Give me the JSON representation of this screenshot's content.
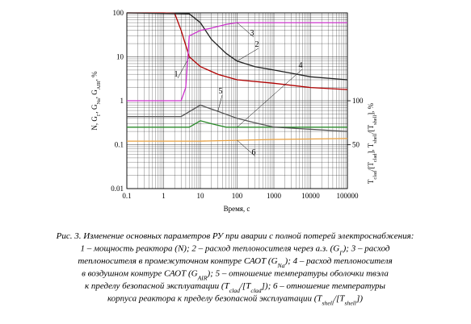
{
  "chart_data": {
    "type": "line",
    "xlabel": "Время, с",
    "ylabel": [
      "N, G",
      "Г",
      ", G",
      "Na",
      ", G",
      "AIR",
      ", %"
    ],
    "y2label": [
      "T",
      "clad",
      "/[T",
      "clad",
      "], T",
      "shell",
      "/[T",
      "shell",
      "], %"
    ],
    "xscale": "log",
    "yscale": "log",
    "xlim": [
      0.1,
      100000
    ],
    "ylim": [
      0.01,
      100
    ],
    "y2lim": [
      0,
      200
    ],
    "xticks": [
      0.1,
      1,
      10,
      100,
      1000,
      10000,
      100000
    ],
    "yticks": [
      0.01,
      0.1,
      1,
      10,
      100
    ],
    "y2ticks": [
      50,
      100
    ],
    "grid": true,
    "minor_grid": true,
    "series": [
      {
        "name": "1",
        "color": "#b00000",
        "x": [
          0.1,
          1,
          2,
          3,
          5,
          10,
          30,
          100,
          1000,
          10000,
          100000
        ],
        "values": [
          100,
          100,
          98,
          40,
          10,
          6,
          4,
          3,
          2.5,
          2,
          1.8
        ]
      },
      {
        "name": "2",
        "color": "#222222",
        "x": [
          0.1,
          5,
          10,
          20,
          50,
          100,
          300,
          1000,
          10000,
          100000
        ],
        "values": [
          100,
          95,
          60,
          25,
          12,
          8,
          6,
          5,
          3.5,
          3
        ]
      },
      {
        "name": "3",
        "color": "#cc33cc",
        "x": [
          0.1,
          3,
          4,
          5,
          10,
          20,
          50,
          100,
          100000
        ],
        "values": [
          1,
          1,
          2,
          30,
          40,
          45,
          55,
          60,
          60
        ]
      },
      {
        "name": "4",
        "color": "#2a8a2a",
        "x": [
          0.1,
          5,
          10,
          20,
          50,
          100,
          1000,
          100000
        ],
        "values": [
          0.25,
          0.25,
          0.35,
          0.3,
          0.25,
          0.25,
          0.25,
          0.25
        ]
      },
      {
        "name": "5",
        "color": "#555555",
        "axis": "y2",
        "x": [
          0.1,
          3,
          10,
          30,
          100,
          300,
          1000,
          100000
        ],
        "values": [
          82,
          82,
          95,
          88,
          80,
          75,
          70,
          65
        ]
      },
      {
        "name": "6",
        "color": "#e8a040",
        "axis": "y2",
        "x": [
          0.1,
          10,
          100,
          1000,
          100000
        ],
        "values": [
          54,
          54,
          55,
          56,
          57
        ]
      }
    ],
    "caption": [
      [
        "Рис. 3. Изменение основных параметров РУ при аварии с полной потерей электроснабжения:"
      ],
      [
        "1 – мощность реактора (N); 2 – расход теплоносителя через а.з. (G",
        "Г",
        "); 3 – расход"
      ],
      [
        "теплоносителя в промежуточном контуре САОТ (G",
        "Na",
        "); 4 – расход теплоносителя"
      ],
      [
        "в воздушном контуре САОТ (G",
        "AIR",
        "); 5 – отношение температуры оболочки твэла"
      ],
      [
        "к пределу безопасной эксплуатации (T",
        "clad",
        "/[T",
        "clad",
        "]); 6 – отношение температуры"
      ],
      [
        "корпуса реактора к пределу безопасной эксплуатации (T",
        "shell",
        "/[T",
        "shell",
        "])"
      ]
    ]
  }
}
